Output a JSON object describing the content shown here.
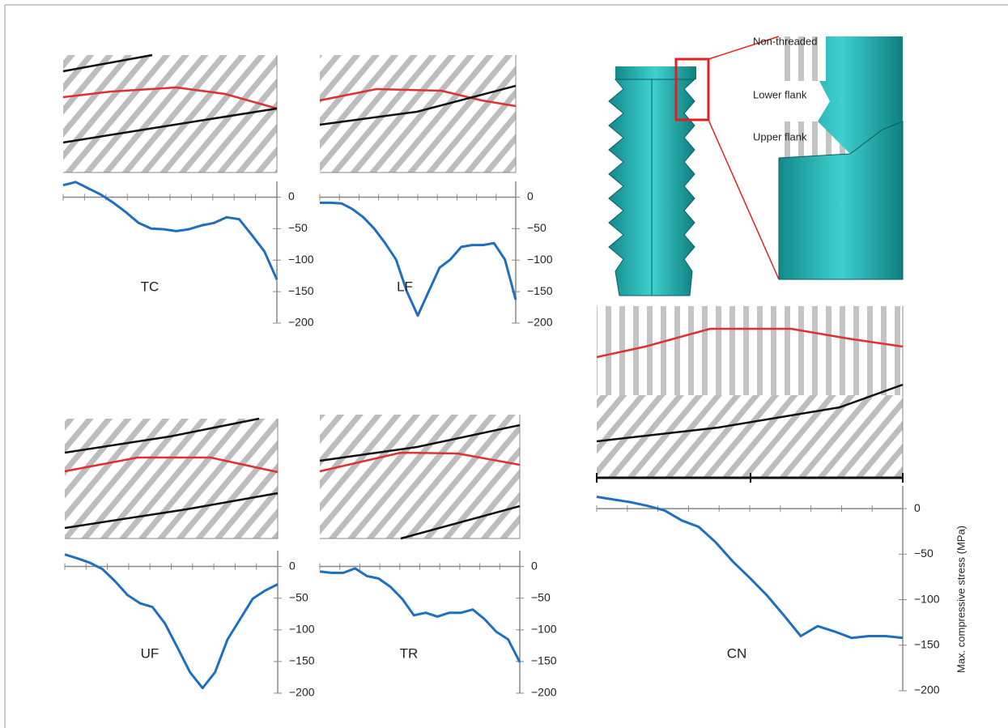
{
  "chart_data": [
    {
      "type": "line",
      "title": "TC",
      "color": "#1f6fc0",
      "values": [
        19,
        24,
        14,
        4,
        -9,
        -24,
        -41,
        -50,
        -51,
        -54,
        -51,
        -45,
        -41,
        -32,
        -35,
        -60,
        -86,
        -131
      ],
      "ylim": [
        -200,
        25
      ],
      "yticks": [
        0,
        {
          "value": -50,
          "label": "−50"
        },
        {
          "value": -100,
          "label": "−100"
        },
        {
          "value": -150,
          "label": "−150"
        },
        {
          "value": -200,
          "label": "−200"
        }
      ]
    },
    {
      "type": "line",
      "title": "LF",
      "color": "#1f6fc0",
      "values": [
        -9,
        -9,
        -10,
        -19,
        -32,
        -50,
        -73,
        -99,
        -150,
        -188,
        -150,
        -112,
        -99,
        -79,
        -76,
        -76,
        -73,
        -99,
        -163
      ],
      "ylim": [
        -200,
        25
      ],
      "yticks": [
        0,
        {
          "value": -50,
          "label": "−50"
        },
        {
          "value": -100,
          "label": "−100"
        },
        {
          "value": -150,
          "label": "−150"
        },
        {
          "value": -200,
          "label": "−200"
        }
      ]
    },
    {
      "type": "line",
      "title": "UF",
      "color": "#1f6fc0",
      "values": [
        19,
        13,
        6,
        -4,
        -23,
        -45,
        -58,
        -64,
        -90,
        -128,
        -167,
        -192,
        -167,
        -115,
        -83,
        -51,
        -38,
        -28
      ],
      "ylim": [
        -200,
        25
      ],
      "yticks": [
        0,
        {
          "value": -50,
          "label": "−50"
        },
        {
          "value": -100,
          "label": "−100"
        },
        {
          "value": -150,
          "label": "−150"
        },
        {
          "value": -200,
          "label": "−200"
        }
      ]
    },
    {
      "type": "line",
      "title": "TR",
      "color": "#1f6fc0",
      "values": [
        -8,
        -10,
        -10,
        -3,
        -15,
        -19,
        -32,
        -51,
        -77,
        -73,
        -79,
        -73,
        -73,
        -68,
        -83,
        -103,
        -115,
        -151
      ],
      "ylim": [
        -200,
        25
      ],
      "yticks": [
        0,
        {
          "value": -50,
          "label": "−50"
        },
        {
          "value": -100,
          "label": "−100"
        },
        {
          "value": -150,
          "label": "−150"
        },
        {
          "value": -200,
          "label": "−200"
        }
      ]
    },
    {
      "type": "line",
      "title": "CN",
      "color": "#1f6fc0",
      "ylabel": "Max. compressive stress (MPa)",
      "values": [
        13,
        10,
        7,
        3,
        -2,
        -13,
        -20,
        -37,
        -58,
        -76,
        -95,
        -117,
        -140,
        -129,
        -135,
        -142,
        -140,
        -140,
        -142
      ],
      "ylim": [
        -200,
        25
      ],
      "yticks": [
        0,
        {
          "value": -50,
          "label": "−50"
        },
        {
          "value": -100,
          "label": "−100"
        },
        {
          "value": -150,
          "label": "−150"
        },
        {
          "value": -200,
          "label": "−200"
        }
      ]
    }
  ],
  "diagram": {
    "labels": [
      "Non-threaded",
      "Lower flank",
      "Upper flank"
    ]
  }
}
